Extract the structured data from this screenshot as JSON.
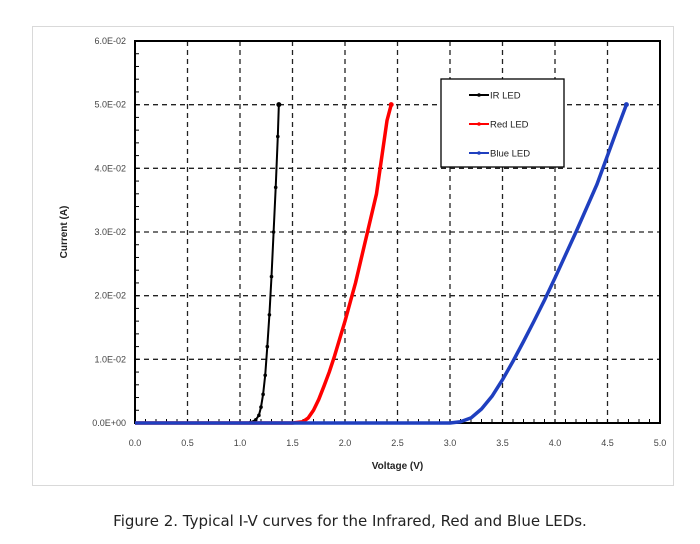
{
  "figure": {
    "caption": "Figure 2.  Typical I-V curves for the Infrared, Red and Blue LEDs."
  },
  "chart_data": {
    "type": "line",
    "title": "",
    "xlabel": "Voltage (V)",
    "ylabel": "Current (A)",
    "xlim": [
      0.0,
      5.0
    ],
    "ylim": [
      0.0,
      0.06
    ],
    "x_ticks": [
      "0.0",
      "0.5",
      "1.0",
      "1.5",
      "2.0",
      "2.5",
      "3.0",
      "3.5",
      "4.0",
      "4.5",
      "5.0"
    ],
    "y_ticks": [
      "0.0E+00",
      "1.0E-02",
      "2.0E-02",
      "3.0E-02",
      "4.0E-02",
      "5.0E-02",
      "6.0E-02"
    ],
    "grid": true,
    "grid_style": "dashed",
    "legend_position": "upper right (inside)",
    "series": [
      {
        "name": "IR LED",
        "color": "#000000",
        "x": [
          0.0,
          1.0,
          1.1,
          1.15,
          1.18,
          1.2,
          1.22,
          1.24,
          1.26,
          1.28,
          1.3,
          1.32,
          1.34,
          1.36,
          1.37
        ],
        "y": [
          0.0,
          0.0,
          0.0001,
          0.0005,
          0.0012,
          0.0025,
          0.0045,
          0.0075,
          0.012,
          0.017,
          0.023,
          0.03,
          0.037,
          0.045,
          0.05
        ]
      },
      {
        "name": "Red LED",
        "color": "#ff0000",
        "x": [
          0.0,
          1.5,
          1.6,
          1.65,
          1.7,
          1.75,
          1.8,
          1.85,
          1.9,
          2.0,
          2.1,
          2.2,
          2.3,
          2.4,
          2.44
        ],
        "y": [
          0.0,
          0.0,
          0.0002,
          0.0008,
          0.002,
          0.0037,
          0.0058,
          0.008,
          0.0105,
          0.016,
          0.022,
          0.029,
          0.036,
          0.0475,
          0.05
        ]
      },
      {
        "name": "Blue LED",
        "color": "#1f3fbf",
        "x": [
          0.0,
          3.0,
          3.1,
          3.2,
          3.3,
          3.4,
          3.5,
          3.6,
          3.7,
          3.8,
          3.9,
          4.0,
          4.2,
          4.4,
          4.6,
          4.68
        ],
        "y": [
          0.0,
          0.0,
          0.0002,
          0.0008,
          0.0022,
          0.0042,
          0.0068,
          0.0097,
          0.0128,
          0.016,
          0.0193,
          0.0228,
          0.03,
          0.0375,
          0.0465,
          0.05
        ]
      }
    ]
  }
}
